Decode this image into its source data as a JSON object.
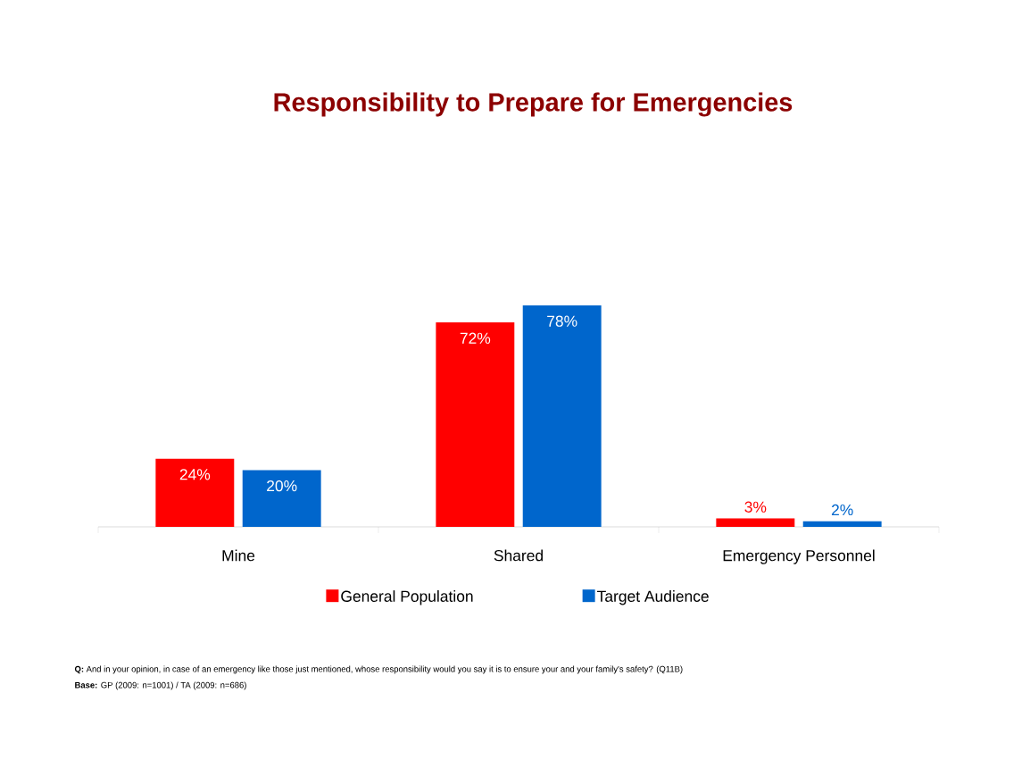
{
  "chart_data": {
    "type": "bar",
    "title": "Responsibility to Prepare for Emergencies",
    "categories": [
      "Mine",
      "Shared",
      "Emergency Personnel"
    ],
    "series": [
      {
        "name": "General Population",
        "color": "#ff0000",
        "values": [
          24,
          72,
          3
        ],
        "value_labels": [
          "24%",
          "72%",
          "3%"
        ]
      },
      {
        "name": "Target Audience",
        "color": "#0066cc",
        "values": [
          20,
          78,
          2
        ],
        "value_labels": [
          "20%",
          "78%",
          "2%"
        ]
      }
    ],
    "legend": "bottom",
    "annotations": [
      "**Q:** And in your opinion, in case of an emergency like those just mentioned, whose responsibility would you say it is to ensure your and your family's safety? (Q11B)",
      "**Base:** GP (2009: n=1001) / TA (2009: n=686)"
    ]
  }
}
